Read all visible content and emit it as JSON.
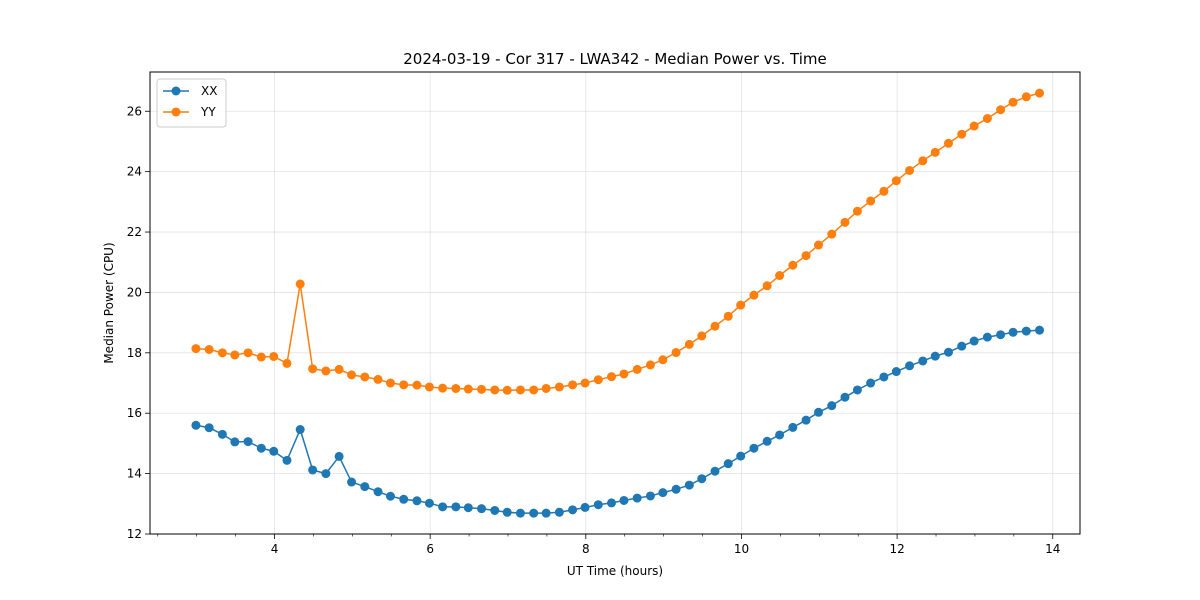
{
  "chart_data": {
    "type": "line",
    "title": "2024-03-19 - Cor 317 - LWA342 - Median Power vs. Time",
    "xlabel": "UT Time (hours)",
    "ylabel": "Median Power (CPU)",
    "xlim": [
      2.4,
      14.35
    ],
    "ylim": [
      12,
      27.3
    ],
    "xticks": [
      4,
      6,
      8,
      10,
      12,
      14
    ],
    "xticklabels": [
      "4",
      "6",
      "8",
      "10",
      "12",
      "14"
    ],
    "yticks": [
      12,
      14,
      16,
      18,
      20,
      22,
      24,
      26
    ],
    "yticklabels": [
      "12",
      "14",
      "16",
      "18",
      "20",
      "22",
      "24",
      "26"
    ],
    "grid": true,
    "legend_position": "top-left",
    "colors": {
      "XX": "#1f77b4",
      "YY": "#ff7f0e"
    },
    "x": [
      2.99,
      3.16,
      3.33,
      3.49,
      3.66,
      3.83,
      3.99,
      4.16,
      4.33,
      4.49,
      4.66,
      4.83,
      4.99,
      5.16,
      5.33,
      5.49,
      5.66,
      5.83,
      5.99,
      6.16,
      6.33,
      6.49,
      6.66,
      6.83,
      6.99,
      7.16,
      7.33,
      7.49,
      7.66,
      7.83,
      7.99,
      8.16,
      8.33,
      8.49,
      8.66,
      8.83,
      8.99,
      9.16,
      9.33,
      9.49,
      9.66,
      9.83,
      9.99,
      10.16,
      10.33,
      10.49,
      10.66,
      10.83,
      10.99,
      11.16,
      11.33,
      11.49,
      11.66,
      11.83,
      11.99,
      12.16,
      12.33,
      12.49,
      12.66,
      12.83,
      12.99,
      13.16,
      13.33,
      13.49,
      13.66,
      13.83
    ],
    "series": [
      {
        "name": "XX",
        "values": [
          15.6,
          15.52,
          15.3,
          15.05,
          15.06,
          14.84,
          14.74,
          14.44,
          15.46,
          14.12,
          14.0,
          14.57,
          13.72,
          13.57,
          13.4,
          13.25,
          13.15,
          13.1,
          13.02,
          12.9,
          12.9,
          12.87,
          12.84,
          12.78,
          12.72,
          12.69,
          12.69,
          12.69,
          12.72,
          12.8,
          12.88,
          12.97,
          13.03,
          13.11,
          13.19,
          13.26,
          13.37,
          13.48,
          13.62,
          13.83,
          14.08,
          14.33,
          14.58,
          14.84,
          15.07,
          15.28,
          15.53,
          15.77,
          16.03,
          16.25,
          16.53,
          16.77,
          17.0,
          17.2,
          17.38,
          17.57,
          17.73,
          17.89,
          18.02,
          18.22,
          18.39,
          18.52,
          18.6,
          18.68,
          18.72,
          18.75
        ]
      },
      {
        "name": "YY",
        "values": [
          18.14,
          18.11,
          18.0,
          17.93,
          18.0,
          17.86,
          17.88,
          17.65,
          20.28,
          17.47,
          17.4,
          17.45,
          17.27,
          17.2,
          17.12,
          17.0,
          16.94,
          16.93,
          16.87,
          16.83,
          16.82,
          16.8,
          16.79,
          16.77,
          16.76,
          16.77,
          16.77,
          16.82,
          16.87,
          16.94,
          17.0,
          17.11,
          17.21,
          17.3,
          17.45,
          17.6,
          17.77,
          18.01,
          18.28,
          18.56,
          18.88,
          19.21,
          19.58,
          19.91,
          20.22,
          20.56,
          20.9,
          21.22,
          21.57,
          21.93,
          22.32,
          22.69,
          23.03,
          23.35,
          23.7,
          24.04,
          24.36,
          24.64,
          24.94,
          25.24,
          25.51,
          25.76,
          26.05,
          26.3,
          26.48,
          26.6
        ]
      }
    ]
  }
}
